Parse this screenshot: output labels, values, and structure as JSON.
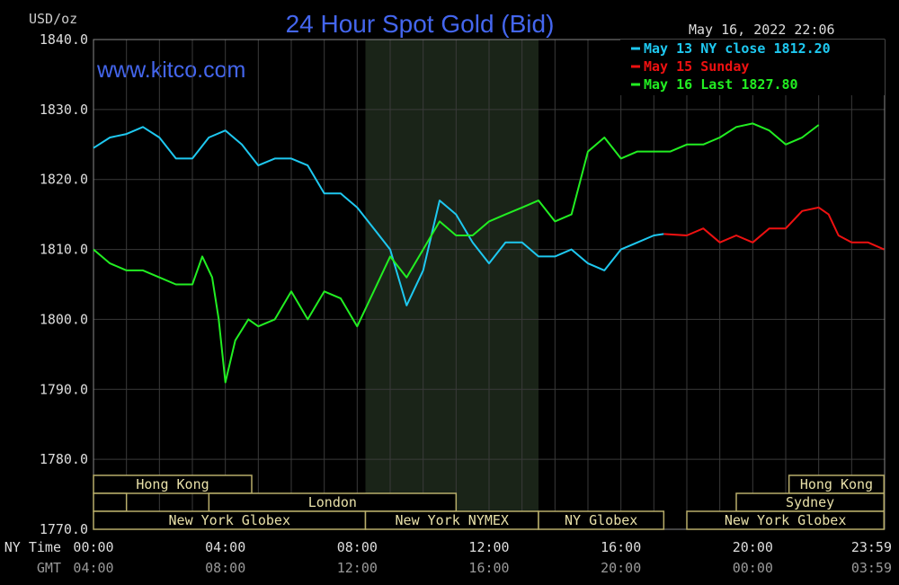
{
  "chart_data": {
    "type": "line",
    "title": "24 Hour Spot Gold (Bid)",
    "unit": "USD/oz",
    "watermark": "www.kitco.com",
    "timestamp": "May 16, 2022 22:06",
    "ylim": [
      1770,
      1840
    ],
    "yticks": [
      "1840.0",
      "1830.0",
      "1820.0",
      "1810.0",
      "1800.0",
      "1790.0",
      "1780.0",
      "1770.0"
    ],
    "ytick_values": [
      1840,
      1830,
      1820,
      1810,
      1800,
      1790,
      1780,
      1770
    ],
    "xlim": [
      0,
      24
    ],
    "x_rows": [
      {
        "label": "NY Time",
        "ticks": [
          "00:00",
          "04:00",
          "08:00",
          "12:00",
          "16:00",
          "20:00",
          "23:59"
        ]
      },
      {
        "label": "GMT",
        "ticks": [
          "04:00",
          "08:00",
          "12:00",
          "16:00",
          "20:00",
          "00:00",
          "03:59"
        ]
      }
    ],
    "xtick_hours": [
      0,
      4,
      8,
      12,
      16,
      20,
      23.983
    ],
    "grid": true,
    "legend_position": "top-right",
    "highlight_band": {
      "from": 8.25,
      "to": 13.5,
      "color": "#1a2418"
    },
    "series": [
      {
        "name": "May 13 NY close 1812.20",
        "color": "#1ec8f0",
        "x": [
          0,
          0.5,
          1,
          1.5,
          2,
          2.5,
          3,
          3.5,
          4,
          4.5,
          5,
          5.5,
          6,
          6.5,
          7,
          7.5,
          8,
          8.5,
          9,
          9.5,
          10,
          10.5,
          11,
          11.5,
          12,
          12.5,
          13,
          13.5,
          14,
          14.5,
          15,
          15.5,
          16,
          16.5,
          17,
          17.3
        ],
        "y": [
          1824.5,
          1826,
          1826.5,
          1827.5,
          1826,
          1823,
          1823,
          1826,
          1827,
          1825,
          1822,
          1823,
          1823,
          1822,
          1818,
          1818,
          1816,
          1813,
          1810,
          1802,
          1807,
          1817,
          1815,
          1811,
          1808,
          1811,
          1811,
          1809,
          1809,
          1810,
          1808,
          1807,
          1810,
          1811,
          1812,
          1812.2
        ]
      },
      {
        "name": "May 15 Sunday",
        "color": "#ee1111",
        "x": [
          17.3,
          18,
          18.5,
          19,
          19.5,
          20,
          20.5,
          21,
          21.5,
          22,
          22.3,
          22.6,
          23,
          23.5,
          23.98
        ],
        "y": [
          1812.2,
          1812,
          1813,
          1811,
          1812,
          1811,
          1813,
          1813,
          1815.5,
          1816,
          1815,
          1812,
          1811,
          1811,
          1810
        ]
      },
      {
        "name": "May 16 Last 1827.80",
        "color": "#22ee22",
        "x": [
          0,
          0.5,
          1,
          1.5,
          2,
          2.5,
          3,
          3.3,
          3.6,
          3.8,
          4,
          4.3,
          4.7,
          5,
          5.5,
          6,
          6.5,
          7,
          7.5,
          8,
          8.5,
          9,
          9.5,
          10,
          10.5,
          11,
          11.5,
          12,
          12.5,
          13,
          13.5,
          14,
          14.5,
          15,
          15.5,
          16,
          16.5,
          17,
          17.5,
          18,
          18.5,
          19,
          19.5,
          20,
          20.5,
          21,
          21.5,
          22
        ],
        "y": [
          1810,
          1808,
          1807,
          1807,
          1806,
          1805,
          1805,
          1809,
          1806,
          1800,
          1791,
          1797,
          1800,
          1799,
          1800,
          1804,
          1800,
          1804,
          1803,
          1799,
          1804,
          1809,
          1806,
          1810,
          1814,
          1812,
          1812,
          1814,
          1815,
          1816,
          1817,
          1814,
          1815,
          1824,
          1826,
          1823,
          1824,
          1824,
          1824,
          1825,
          1825,
          1826,
          1827.5,
          1828,
          1827,
          1825,
          1826,
          1827.8
        ]
      }
    ],
    "sessions": [
      {
        "label": "Hong Kong",
        "from": 0,
        "to": 4.8,
        "row": 0
      },
      {
        "label": "",
        "from": 0,
        "to": 1,
        "row": 1
      },
      {
        "label": "London",
        "from": 3.5,
        "to": 11,
        "row": 1
      },
      {
        "label": "New York Globex",
        "from": 0,
        "to": 8.25,
        "row": 2
      },
      {
        "label": "New York NYMEX",
        "from": 8.25,
        "to": 13.5,
        "row": 2
      },
      {
        "label": "NY Globex",
        "from": 13.5,
        "to": 17.3,
        "row": 2
      },
      {
        "label": "Hong Kong",
        "from": 21.1,
        "to": 23.98,
        "row": 0
      },
      {
        "label": "Sydney",
        "from": 19.5,
        "to": 23.98,
        "row": 1
      },
      {
        "label": "New York Globex",
        "from": 18,
        "to": 23.98,
        "row": 2
      }
    ]
  }
}
